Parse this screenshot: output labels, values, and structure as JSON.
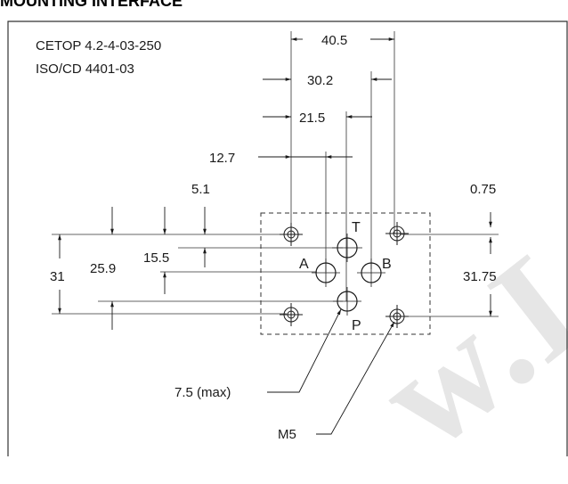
{
  "title": "MOUNTING INTERFACE",
  "standard_1": "CETOP 4.2-4-03-250",
  "standard_2": "ISO/CD 4401-03",
  "watermark": "w.La",
  "dims": {
    "d40_5": "40.5",
    "d30_2": "30.2",
    "d21_5": "21.5",
    "d12_7": "12.7",
    "d5_1": "5.1",
    "d0_75": "0.75",
    "d31": "31",
    "d25_9": "25.9",
    "d15_5": "15.5",
    "d31_75": "31.75",
    "d7_5": "7.5 (max)",
    "m5": "M5"
  },
  "ports": {
    "t": "T",
    "a": "A",
    "b": "B",
    "p": "P"
  }
}
